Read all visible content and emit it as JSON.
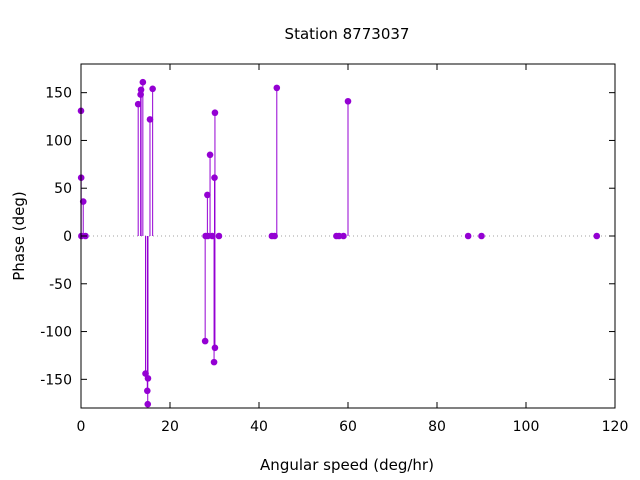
{
  "chart_data": {
    "type": "scatter",
    "style": "impulses-with-points",
    "title": "Station 8773037",
    "xlabel": "Angular speed (deg/hr)",
    "ylabel": "Phase (deg)",
    "xlim": [
      0,
      120
    ],
    "ylim": [
      -180,
      180
    ],
    "xticks": [
      0,
      20,
      40,
      60,
      80,
      100,
      120
    ],
    "yticks": [
      -150,
      -100,
      -50,
      0,
      50,
      100,
      150
    ],
    "grid": false,
    "zero_line": "dotted",
    "legend": "none",
    "series_color": "#9400d3",
    "points": [
      {
        "x": 0.0,
        "y": 131
      },
      {
        "x": 0.04,
        "y": 61
      },
      {
        "x": 0.08,
        "y": 0
      },
      {
        "x": 0.5,
        "y": 36
      },
      {
        "x": 1.0,
        "y": 0
      },
      {
        "x": 12.85,
        "y": 138
      },
      {
        "x": 13.4,
        "y": 148
      },
      {
        "x": 13.5,
        "y": 153
      },
      {
        "x": 13.9,
        "y": 161
      },
      {
        "x": 14.5,
        "y": -144
      },
      {
        "x": 14.9,
        "y": -162
      },
      {
        "x": 15.0,
        "y": -176
      },
      {
        "x": 15.05,
        "y": -149
      },
      {
        "x": 15.5,
        "y": 122
      },
      {
        "x": 16.1,
        "y": 154
      },
      {
        "x": 27.9,
        "y": -110
      },
      {
        "x": 28.0,
        "y": 0
      },
      {
        "x": 28.4,
        "y": 43
      },
      {
        "x": 28.5,
        "y": 0
      },
      {
        "x": 29.0,
        "y": 85
      },
      {
        "x": 29.5,
        "y": 0
      },
      {
        "x": 29.9,
        "y": -132
      },
      {
        "x": 30.0,
        "y": 61
      },
      {
        "x": 30.1,
        "y": -117
      },
      {
        "x": 30.1,
        "y": 129
      },
      {
        "x": 31.0,
        "y": 0
      },
      {
        "x": 42.9,
        "y": 0
      },
      {
        "x": 43.5,
        "y": 0
      },
      {
        "x": 44.0,
        "y": 155
      },
      {
        "x": 57.4,
        "y": 0
      },
      {
        "x": 58.0,
        "y": 0
      },
      {
        "x": 58.98,
        "y": 0
      },
      {
        "x": 60.0,
        "y": 141
      },
      {
        "x": 87.0,
        "y": 0
      },
      {
        "x": 90.0,
        "y": 0
      },
      {
        "x": 115.9,
        "y": 0
      }
    ]
  }
}
